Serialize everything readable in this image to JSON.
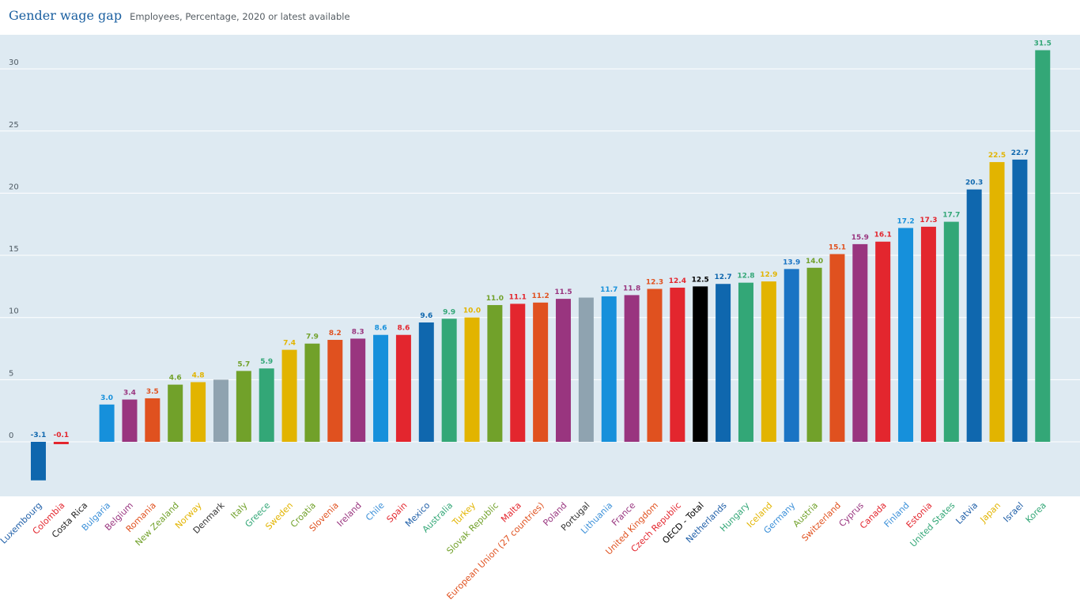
{
  "header": {
    "title": "Gender wage gap",
    "subtitle": "Employees, Percentage, 2020 or latest available"
  },
  "chart_data": {
    "type": "bar",
    "title": "Gender wage gap",
    "subtitle": "Employees, Percentage, 2020 or latest available",
    "xlabel": "",
    "ylabel": "",
    "ylim": [
      -3.5,
      33
    ],
    "yticks": [
      0,
      5,
      10,
      15,
      20,
      25,
      30
    ],
    "grid": true,
    "legend": "none",
    "categories": [
      "Luxembourg",
      "Colombia",
      "Costa Rica",
      "Bulgaria",
      "Belgium",
      "Romania",
      "New Zealand",
      "Norway",
      "Denmark",
      "Italy",
      "Greece",
      "Sweden",
      "Croatia",
      "Slovenia",
      "Ireland",
      "Chile",
      "Spain",
      "Mexico",
      "Australia",
      "Turkey",
      "Slovak Republic",
      "Malta",
      "European Union (27 countries)",
      "Poland",
      "Portugal",
      "Lithuania",
      "France",
      "United Kingdom",
      "Czech Republic",
      "OECD - Total",
      "Netherlands",
      "Hungary",
      "Iceland",
      "Germany",
      "Austria",
      "Switzerland",
      "Cyprus",
      "Canada",
      "Finland",
      "Estonia",
      "United States",
      "Latvia",
      "Japan",
      "Israel",
      "Korea"
    ],
    "values": [
      -3.1,
      -0.1,
      null,
      3.0,
      3.4,
      3.5,
      4.6,
      4.8,
      5.0,
      5.7,
      5.9,
      7.4,
      7.9,
      8.2,
      8.3,
      8.6,
      8.6,
      9.6,
      9.9,
      10.0,
      11.0,
      11.1,
      11.2,
      11.5,
      11.6,
      11.7,
      11.8,
      12.3,
      12.4,
      12.5,
      12.7,
      12.8,
      12.9,
      13.9,
      14.0,
      15.1,
      15.9,
      16.1,
      17.2,
      17.3,
      17.7,
      20.3,
      22.5,
      22.7,
      31.5
    ],
    "labels_shown": [
      true,
      true,
      false,
      true,
      true,
      true,
      true,
      true,
      false,
      true,
      true,
      true,
      true,
      true,
      true,
      true,
      true,
      true,
      true,
      true,
      true,
      true,
      true,
      true,
      false,
      true,
      true,
      true,
      true,
      true,
      true,
      true,
      true,
      true,
      true,
      true,
      true,
      true,
      true,
      true,
      true,
      true,
      true,
      true,
      true
    ],
    "colors": [
      "#0f67ae",
      "#e3262e",
      "#222222",
      "#1690db",
      "#99357f",
      "#e0511f",
      "#71a12a",
      "#e2b400",
      "#8fa3b0",
      "#71a12a",
      "#33a777",
      "#e2b400",
      "#71a12a",
      "#e0511f",
      "#99357f",
      "#1690db",
      "#e3262e",
      "#0f67ae",
      "#33a777",
      "#e2b400",
      "#71a12a",
      "#e3262e",
      "#e0511f",
      "#99357f",
      "#8fa3b0",
      "#1690db",
      "#99357f",
      "#e0511f",
      "#e3262e",
      "#000000",
      "#0f67ae",
      "#33a777",
      "#e2b400",
      "#1a74c4",
      "#71a12a",
      "#e0511f",
      "#99357f",
      "#e3262e",
      "#1690db",
      "#e3262e",
      "#33a777",
      "#0f67ae",
      "#e2b400",
      "#0f67ae",
      "#33a777"
    ],
    "label_colors": [
      "#1f5fa8",
      "#e3262e",
      "#222222",
      "#3a8fd8",
      "#99357f",
      "#e0511f",
      "#71a12a",
      "#e2b400",
      "#333333",
      "#71a12a",
      "#33a777",
      "#e2b400",
      "#71a12a",
      "#e0511f",
      "#99357f",
      "#3a8fd8",
      "#e3262e",
      "#1f5fa8",
      "#33a777",
      "#e2b400",
      "#71a12a",
      "#e3262e",
      "#e0511f",
      "#99357f",
      "#333333",
      "#3a8fd8",
      "#99357f",
      "#e0511f",
      "#e3262e",
      "#000000",
      "#1f5fa8",
      "#33a777",
      "#e2b400",
      "#3a8fd8",
      "#71a12a",
      "#e0511f",
      "#99357f",
      "#e3262e",
      "#3a8fd8",
      "#e3262e",
      "#33a777",
      "#1f5fa8",
      "#e2b400",
      "#1f5fa8",
      "#33a777"
    ]
  },
  "colors": {
    "plot_background": "#deeaf2",
    "gridline": "#ffffff",
    "title": "#1a5fa0"
  }
}
